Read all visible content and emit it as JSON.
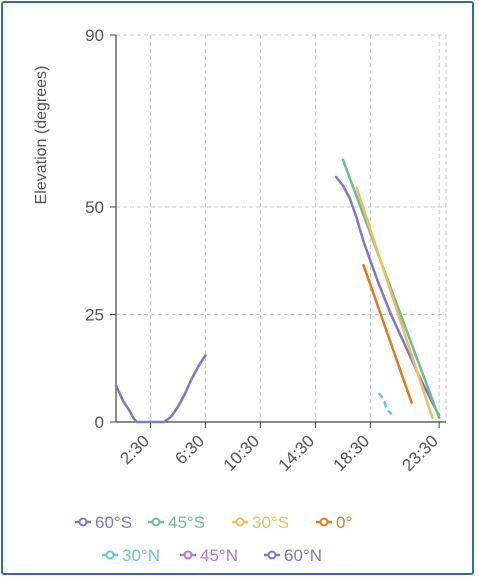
{
  "chart_data": {
    "type": "line",
    "title": "",
    "xlabel": "",
    "ylabel": "Elevation (degrees)",
    "x_ticks": [
      "2:30",
      "6:30",
      "10:30",
      "14:30",
      "18:30",
      "23:30"
    ],
    "y_ticks": [
      0,
      25,
      50,
      90
    ],
    "ylim": [
      0,
      90
    ],
    "grid": true,
    "legend_position": "bottom",
    "series": [
      {
        "name": "60°S",
        "color": "#7f78c9",
        "points": [
          [
            "0:00",
            8.5
          ],
          [
            "0:30",
            5
          ],
          [
            "1:00",
            2.5
          ],
          [
            "1:15",
            1
          ],
          [
            "1:30",
            0
          ],
          [
            "3:30",
            0
          ],
          [
            "4:00",
            1.2
          ],
          [
            "4:30",
            3.5
          ],
          [
            "5:00",
            6.5
          ],
          [
            "5:30",
            10
          ],
          [
            "6:00",
            13
          ],
          [
            "6:30",
            15.5
          ]
        ]
      },
      {
        "name": "45°N",
        "color": "#b975c9",
        "points": []
      },
      {
        "name": "60°N",
        "color": "#7f78c9",
        "points": [
          [
            "16:00",
            57
          ],
          [
            "16:30",
            55
          ],
          [
            "17:00",
            52
          ],
          [
            "17:30",
            47.5
          ],
          [
            "18:00",
            42
          ],
          [
            "19:00",
            33
          ],
          [
            "20:00",
            25
          ],
          [
            "21:00",
            18
          ],
          [
            "22:00",
            11
          ],
          [
            "23:00",
            4.5
          ],
          [
            "23:30",
            1.5
          ]
        ]
      },
      {
        "name": "45°S",
        "color": "#6bbf8e",
        "points": [
          [
            "16:30",
            61
          ],
          [
            "23:30",
            1
          ]
        ]
      },
      {
        "name": "30°S",
        "color": "#f2bd5a",
        "points": [
          [
            "17:30",
            54.5
          ],
          [
            "23:00",
            1
          ]
        ]
      },
      {
        "name": "0°",
        "color": "#e8771c",
        "points": [
          [
            "18:00",
            36.5
          ],
          [
            "21:30",
            4.5
          ]
        ]
      },
      {
        "name": "30°N",
        "color": "#6cc6d5",
        "points": [
          [
            "19:10",
            6.5
          ],
          [
            "19:30",
            5.2
          ],
          [
            "19:40",
            3
          ],
          [
            "20:00",
            2
          ]
        ]
      }
    ]
  },
  "legend": [
    {
      "label": "60°S",
      "color": "#7f78c9"
    },
    {
      "label": "45°S",
      "color": "#6bbf8e"
    },
    {
      "label": "30°S",
      "color": "#f2bd5a"
    },
    {
      "label": "0°",
      "color": "#e8771c"
    },
    {
      "label": "30°N",
      "color": "#6cc6d5"
    },
    {
      "label": "45°N",
      "color": "#b975c9"
    },
    {
      "label": "60°N",
      "color": "#7f78c9"
    }
  ]
}
